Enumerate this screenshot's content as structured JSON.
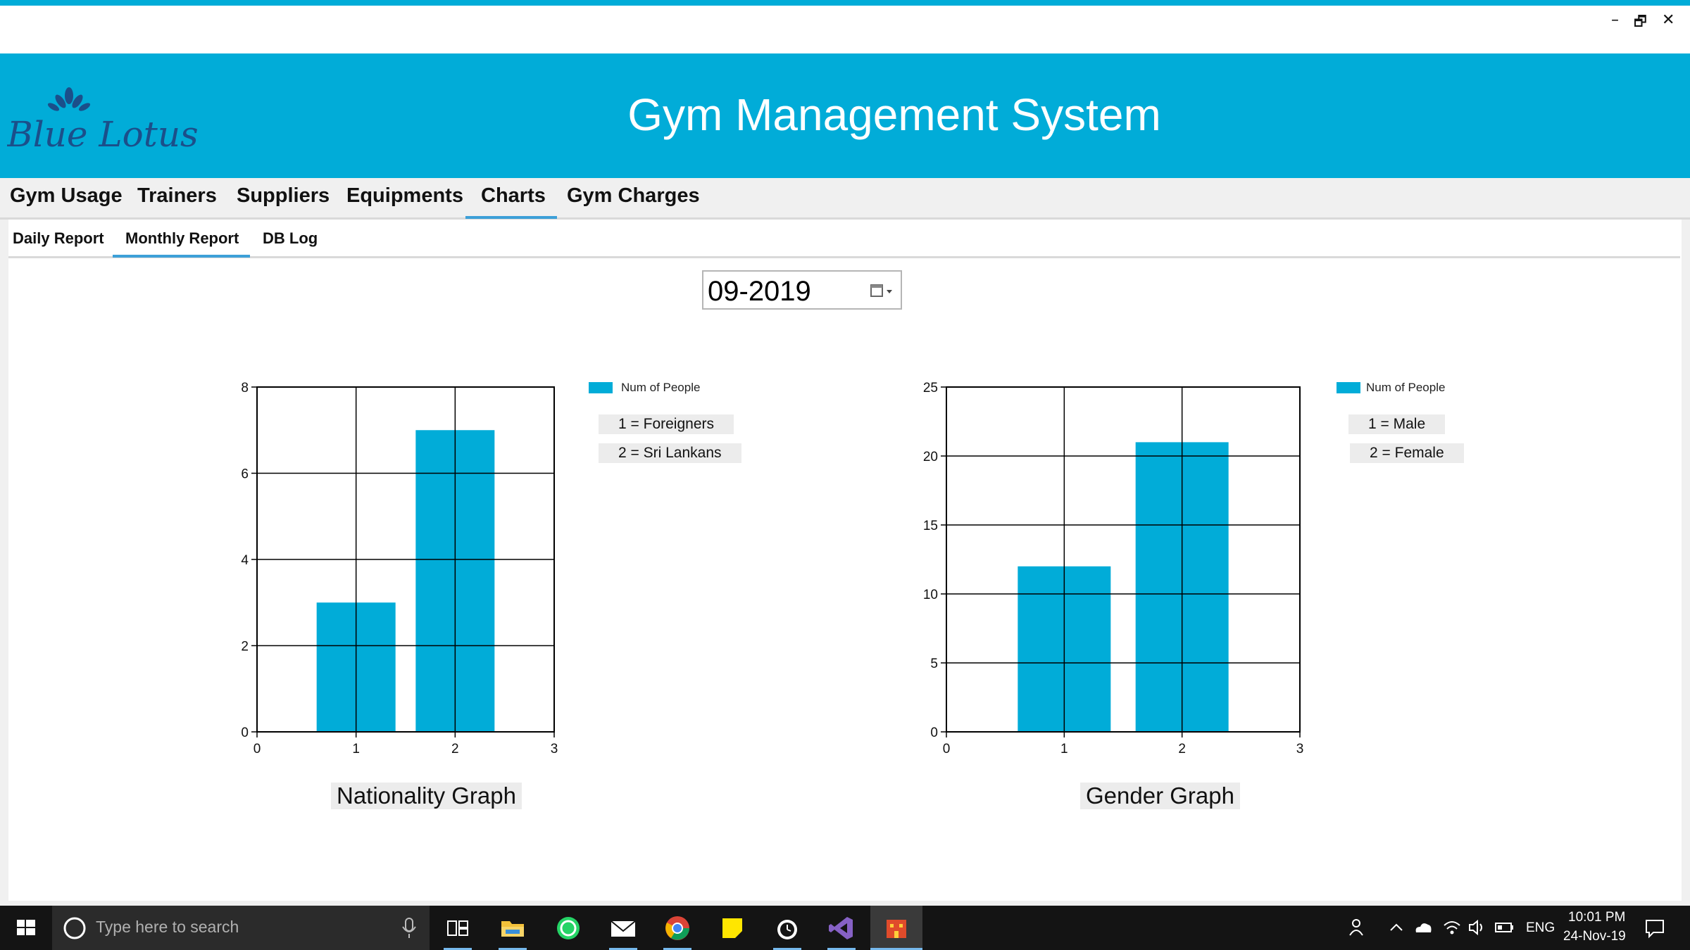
{
  "window": {
    "minimize": "–",
    "restore": "🗗",
    "close": "✕"
  },
  "header": {
    "logo_text": "Blue Lotus",
    "title": "Gym Management System"
  },
  "menu": {
    "items": [
      "Gym Usage",
      "Trainers",
      "Suppliers",
      "Equipments",
      "Charts",
      "Gym Charges"
    ],
    "active": "Charts"
  },
  "subtabs": {
    "items": [
      "Daily Report",
      "Monthly Report",
      "DB Log"
    ],
    "active": "Monthly Report"
  },
  "datepicker": {
    "value": "09-2019",
    "icon": "calendar-dropdown-icon"
  },
  "chart_data": [
    {
      "type": "bar",
      "x": [
        1,
        2
      ],
      "values": [
        3,
        7
      ],
      "series": [
        {
          "name": "Num of People",
          "values": [
            3,
            7
          ]
        }
      ],
      "xlim": [
        0,
        3
      ],
      "ylim": [
        0,
        8
      ],
      "xticks": [
        0,
        1,
        2,
        3
      ],
      "yticks": [
        0,
        2,
        4,
        6,
        8
      ],
      "legend": [
        "1 = Foreigners",
        "2 = Sri Lankans"
      ],
      "title": "Nationality Graph",
      "grid": true,
      "legend_placement": "right",
      "color": "#01acd8"
    },
    {
      "type": "bar",
      "x": [
        1,
        2
      ],
      "values": [
        12,
        21
      ],
      "series": [
        {
          "name": "Num of People",
          "values": [
            12,
            21
          ]
        }
      ],
      "xlim": [
        0,
        3
      ],
      "ylim": [
        0,
        25
      ],
      "xticks": [
        0,
        1,
        2,
        3
      ],
      "yticks": [
        0,
        5,
        10,
        15,
        20,
        25
      ],
      "legend": [
        "1 = Male",
        "2 = Female"
      ],
      "title": "Gender Graph",
      "grid": true,
      "legend_placement": "right",
      "color": "#01acd8"
    }
  ],
  "taskbar": {
    "search_placeholder": "Type here to search",
    "language": "ENG",
    "time": "10:01 PM",
    "date": "24-Nov-19",
    "pinned": [
      "task-view-icon",
      "file-explorer-icon",
      "whatsapp-icon",
      "mail-icon",
      "chrome-icon",
      "sticky-notes-icon",
      "alarm-clock-icon",
      "visual-studio-icon",
      "app-icon"
    ]
  }
}
